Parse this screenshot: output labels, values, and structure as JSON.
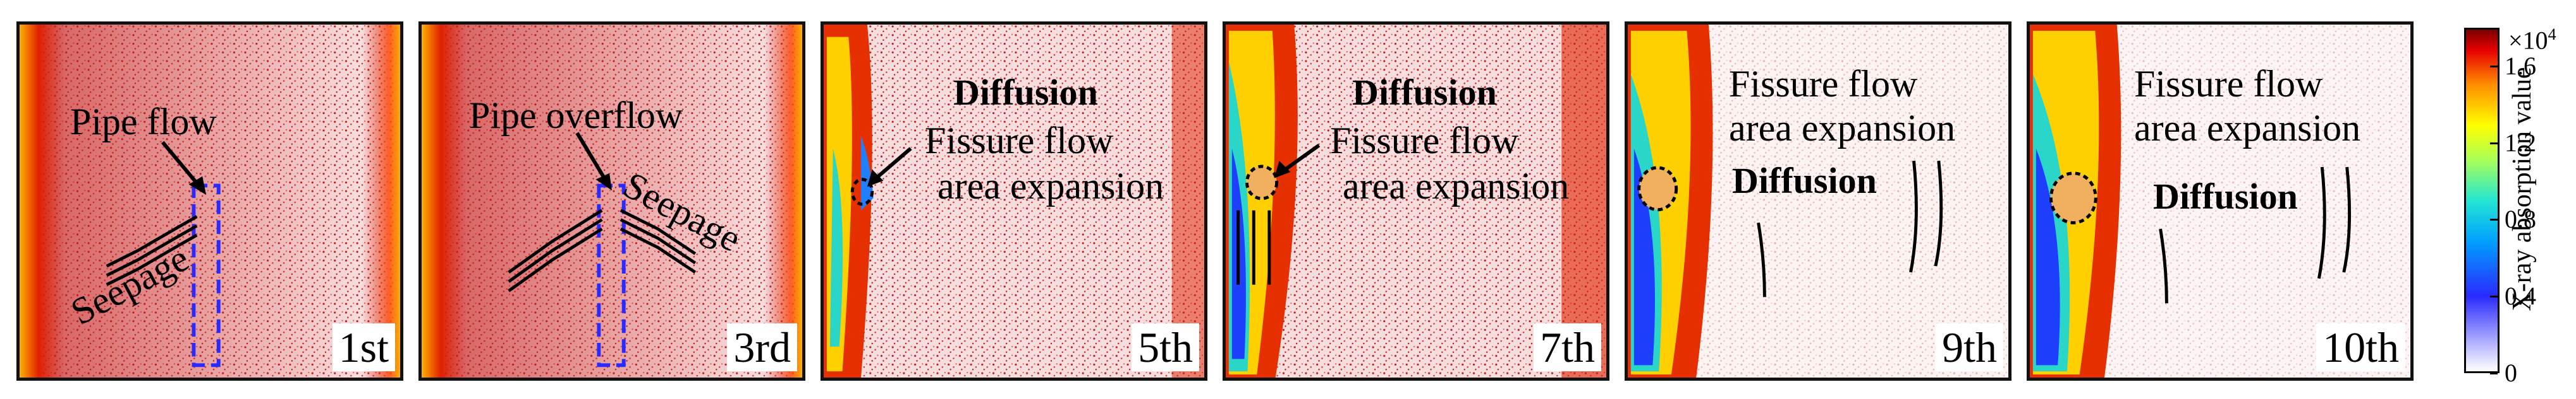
{
  "figure": {
    "panels": [
      {
        "label": "1st",
        "annotations": [
          "Pipe flow",
          "Seepage"
        ]
      },
      {
        "label": "3rd",
        "annotations": [
          "Pipe overflow",
          "Seepage"
        ]
      },
      {
        "label": "5th",
        "annotations": [
          "Diffusion",
          "Fissure flow",
          "area expansion"
        ]
      },
      {
        "label": "7th",
        "annotations": [
          "Diffusion",
          "Fissure flow",
          "area expansion"
        ]
      },
      {
        "label": "9th",
        "annotations": [
          "Fissure flow",
          "area expansion",
          "Diffusion"
        ]
      },
      {
        "label": "10th",
        "annotations": [
          "Fissure flow",
          "area expansion",
          "Diffusion"
        ]
      }
    ],
    "colorbar": {
      "title": "X-ray absorption value",
      "unit": "×10",
      "unit_exponent": "4",
      "ticks": [
        "0",
        "0.4",
        "0.8",
        "1.2",
        "1.6"
      ],
      "range": [
        0,
        1.8
      ]
    },
    "colors": {
      "speckle": "#c41a1a",
      "boundary_left": "#ff8a00",
      "dashed_box": "#2a2aff",
      "frame": "#111111"
    }
  }
}
